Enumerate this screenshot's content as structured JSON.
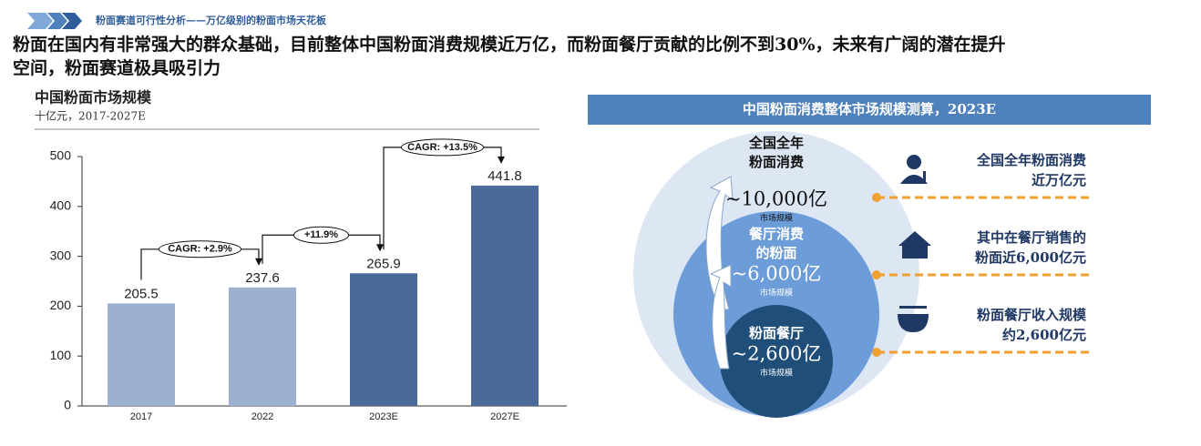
{
  "header": {
    "breadcrumb": "粉面赛道可行性分析——万亿级别的粉面市场天花板",
    "headline": [
      "粉面在国内有非常强大的群众基础，目前整体中国粉面消费规模近万亿，而粉面餐厅贡献的比例不到30%，未来有广阔的潜在提升",
      "空间，粉面赛道极具吸引力"
    ]
  },
  "chart_data": {
    "type": "bar",
    "title": "中国粉面市场规模",
    "subtitle": "十亿元，2017-2027E",
    "categories": [
      "2017",
      "2022",
      "2023E",
      "2027E"
    ],
    "values": [
      205.5,
      237.6,
      265.9,
      441.8
    ],
    "colors": [
      "#9db0cf",
      "#9db0cf",
      "#4a6a9a",
      "#4a6a9a"
    ],
    "ylim": [
      0,
      500
    ],
    "yticks": [
      0,
      100,
      200,
      300,
      400,
      500
    ],
    "annotations": [
      "CAGR: +2.9%",
      "+11.9%",
      "CAGR: +13.5%"
    ]
  },
  "diagram": {
    "title": "中国粉面消费整体市场规模测算，2023E",
    "circles": [
      {
        "label": [
          "全国全年",
          "粉面消费"
        ],
        "value": "~10,000亿",
        "note": "市场规模"
      },
      {
        "label": [
          "餐厅消费",
          "的粉面"
        ],
        "value": "~6,000亿",
        "note": "市场规模"
      },
      {
        "label": [
          "粉面餐厅"
        ],
        "value": "~2,600亿",
        "note": "市场规模"
      }
    ],
    "items": [
      [
        "全国全年粉面消费",
        "近万亿元"
      ],
      [
        "其中在餐厅销售的",
        "粉面近6,000亿元"
      ],
      [
        "粉面餐厅收入规模",
        "约2,600亿元"
      ]
    ]
  }
}
